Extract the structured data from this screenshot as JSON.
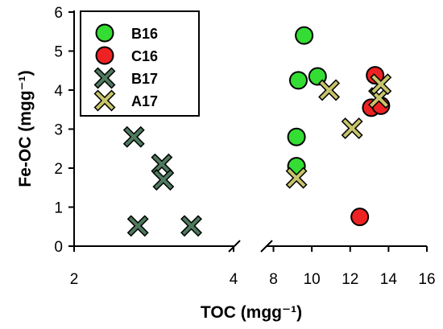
{
  "chart_data": {
    "type": "scatter",
    "xlabel": "TOC (mgg⁻¹)",
    "ylabel": "Fe-OC (mgg⁻¹)",
    "ylim": [
      0,
      6
    ],
    "yticks": [
      0,
      1,
      2,
      3,
      4,
      5,
      6
    ],
    "x_segments": [
      {
        "xlim": [
          2,
          4
        ],
        "ticks": [
          2,
          4
        ]
      },
      {
        "xlim": [
          7.6,
          16
        ],
        "ticks": [
          8,
          10,
          12,
          14,
          16
        ]
      }
    ],
    "axis_break": true,
    "legend": {
      "position": "top-left"
    },
    "series": [
      {
        "name": "B16",
        "marker": "circle",
        "color": "#33dd33",
        "points": [
          [
            9.2,
            2.05
          ],
          [
            9.2,
            2.8
          ],
          [
            9.3,
            4.25
          ],
          [
            9.6,
            5.4
          ],
          [
            10.3,
            4.35
          ]
        ]
      },
      {
        "name": "C16",
        "marker": "circle",
        "color": "#ee2222",
        "points": [
          [
            12.5,
            0.75
          ],
          [
            13.1,
            3.55
          ],
          [
            13.3,
            4.38
          ],
          [
            13.6,
            3.6
          ]
        ]
      },
      {
        "name": "B17",
        "marker": "x",
        "color": "#4e7a5e",
        "points": [
          [
            2.75,
            2.8
          ],
          [
            2.8,
            0.52
          ],
          [
            3.1,
            2.1
          ],
          [
            3.12,
            1.7
          ],
          [
            3.47,
            0.52
          ]
        ]
      },
      {
        "name": "A17",
        "marker": "x",
        "color": "#c8c46a",
        "points": [
          [
            9.2,
            1.75
          ],
          [
            10.9,
            4.0
          ],
          [
            12.1,
            3.02
          ],
          [
            13.5,
            3.8
          ],
          [
            13.6,
            4.15
          ]
        ]
      }
    ]
  }
}
